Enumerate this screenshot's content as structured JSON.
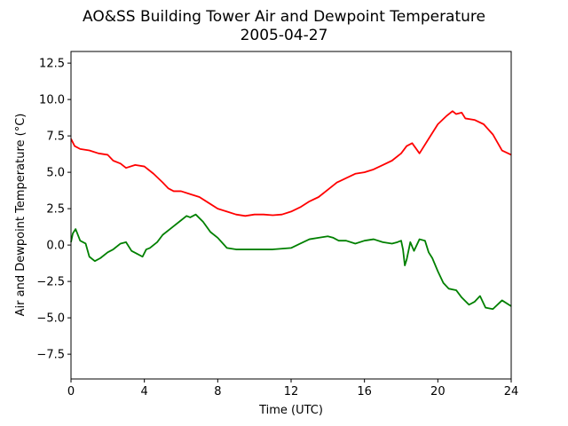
{
  "chart_data": {
    "type": "line",
    "title": "AO&SS Building Tower Air and Dewpoint Temperature",
    "subtitle": "2005-04-27",
    "xlabel": "Time (UTC)",
    "ylabel": "Air and Dewpoint Temperature (°C)",
    "xlim": [
      0,
      24
    ],
    "ylim": [
      -9.2,
      13.3
    ],
    "xticks": [
      0,
      4,
      8,
      12,
      16,
      20,
      24
    ],
    "xtick_labels": [
      "0",
      "4",
      "8",
      "12",
      "16",
      "20",
      "24"
    ],
    "yticks": [
      -7.5,
      -5.0,
      -2.5,
      0.0,
      2.5,
      5.0,
      7.5,
      10.0,
      12.5
    ],
    "ytick_labels": [
      "−7.5",
      "−5.0",
      "−2.5",
      "0.0",
      "2.5",
      "5.0",
      "7.5",
      "10.0",
      "12.5"
    ],
    "grid": false,
    "series": [
      {
        "color": "#ff0000",
        "x": [
          0,
          0.2,
          0.5,
          1,
          1.5,
          2,
          2.3,
          2.7,
          3,
          3.5,
          4,
          4.5,
          5,
          5.3,
          5.6,
          6,
          6.5,
          7,
          7.5,
          8,
          8.5,
          9,
          9.5,
          10,
          10.5,
          11,
          11.5,
          12,
          12.5,
          13,
          13.5,
          14,
          14.5,
          15,
          15.5,
          16,
          16.5,
          17,
          17.5,
          18,
          18.3,
          18.6,
          19,
          19.5,
          20,
          20.5,
          20.8,
          21,
          21.3,
          21.5,
          22,
          22.5,
          23,
          23.5,
          24
        ],
        "y": [
          7.3,
          6.8,
          6.6,
          6.5,
          6.3,
          6.2,
          5.8,
          5.6,
          5.3,
          5.5,
          5.4,
          4.9,
          4.3,
          3.9,
          3.7,
          3.7,
          3.5,
          3.3,
          2.9,
          2.5,
          2.3,
          2.1,
          2.0,
          2.1,
          2.1,
          2.05,
          2.1,
          2.3,
          2.6,
          3.0,
          3.3,
          3.8,
          4.3,
          4.6,
          4.9,
          5.0,
          5.2,
          5.5,
          5.8,
          6.3,
          6.8,
          7.0,
          6.3,
          7.3,
          8.3,
          8.9,
          9.2,
          9.0,
          9.1,
          8.7,
          8.6,
          8.3,
          7.6,
          6.5,
          6.2
        ]
      },
      {
        "color": "#008000",
        "x": [
          0,
          0.1,
          0.25,
          0.5,
          0.8,
          1,
          1.3,
          1.6,
          2,
          2.3,
          2.7,
          3,
          3.3,
          3.6,
          3.9,
          4.1,
          4.3,
          4.7,
          5,
          5.5,
          6,
          6.3,
          6.5,
          6.8,
          7.2,
          7.6,
          8,
          8.5,
          9,
          10,
          11,
          12,
          12.5,
          13,
          13.5,
          14,
          14.3,
          14.6,
          15,
          15.5,
          16,
          16.5,
          17,
          17.5,
          17.8,
          18,
          18.1,
          18.2,
          18.3,
          18.5,
          18.7,
          19,
          19.3,
          19.5,
          19.7,
          20,
          20.3,
          20.6,
          21,
          21.3,
          21.7,
          22,
          22.3,
          22.6,
          23,
          23.5,
          24
        ],
        "y": [
          0.2,
          0.8,
          1.1,
          0.3,
          0.1,
          -0.8,
          -1.1,
          -0.9,
          -0.5,
          -0.3,
          0.1,
          0.2,
          -0.4,
          -0.6,
          -0.8,
          -0.3,
          -0.2,
          0.2,
          0.7,
          1.2,
          1.7,
          2.0,
          1.9,
          2.1,
          1.6,
          0.9,
          0.5,
          -0.2,
          -0.3,
          -0.3,
          -0.3,
          -0.2,
          0.1,
          0.4,
          0.5,
          0.6,
          0.5,
          0.3,
          0.3,
          0.1,
          0.3,
          0.4,
          0.2,
          0.1,
          0.2,
          0.3,
          -0.3,
          -1.4,
          -1.0,
          0.2,
          -0.4,
          0.4,
          0.3,
          -0.5,
          -0.9,
          -1.8,
          -2.6,
          -3.0,
          -3.1,
          -3.6,
          -4.1,
          -3.9,
          -3.5,
          -4.3,
          -4.4,
          -3.8,
          -4.2
        ]
      }
    ]
  }
}
